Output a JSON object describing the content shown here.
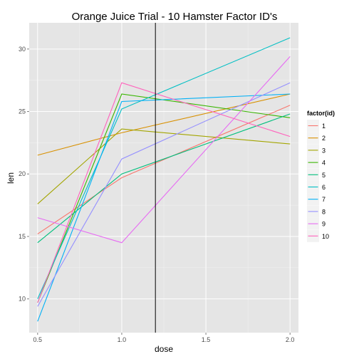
{
  "chart_data": {
    "type": "line",
    "title": "Orange Juice Trial - 10 Hamster Factor ID's",
    "xlabel": "dose",
    "ylabel": "len",
    "x": [
      0.5,
      1.0,
      2.0
    ],
    "xlim": [
      0.45,
      2.05
    ],
    "ylim": [
      7.3,
      32.1
    ],
    "xticks": [
      0.5,
      1.0,
      1.5,
      2.0
    ],
    "xtick_labels": [
      "0.5",
      "1.0",
      "1.5",
      "2.0"
    ],
    "yticks": [
      10,
      15,
      20,
      25,
      30
    ],
    "ytick_labels": [
      "10",
      "15",
      "20",
      "25",
      "30"
    ],
    "grid": true,
    "legend_title": "factor(id)",
    "legend_position": "right",
    "vline": 1.2,
    "series": [
      {
        "name": "1",
        "color": "#F8766D",
        "values": [
          15.2,
          19.7,
          25.5
        ]
      },
      {
        "name": "2",
        "color": "#D89000",
        "values": [
          21.5,
          23.3,
          26.4
        ]
      },
      {
        "name": "3",
        "color": "#A3A500",
        "values": [
          17.6,
          23.6,
          22.4
        ]
      },
      {
        "name": "4",
        "color": "#39B600",
        "values": [
          9.7,
          26.4,
          24.5
        ]
      },
      {
        "name": "5",
        "color": "#00BF7D",
        "values": [
          14.5,
          20.0,
          24.8
        ]
      },
      {
        "name": "6",
        "color": "#00BFC4",
        "values": [
          10.0,
          25.2,
          30.9
        ]
      },
      {
        "name": "7",
        "color": "#00B0F6",
        "values": [
          8.2,
          25.8,
          26.4
        ]
      },
      {
        "name": "8",
        "color": "#9590FF",
        "values": [
          9.4,
          21.2,
          27.3
        ]
      },
      {
        "name": "9",
        "color": "#E76BF3",
        "values": [
          16.5,
          14.5,
          29.4
        ]
      },
      {
        "name": "10",
        "color": "#FF62BC",
        "values": [
          9.7,
          27.3,
          23.0
        ]
      }
    ]
  }
}
